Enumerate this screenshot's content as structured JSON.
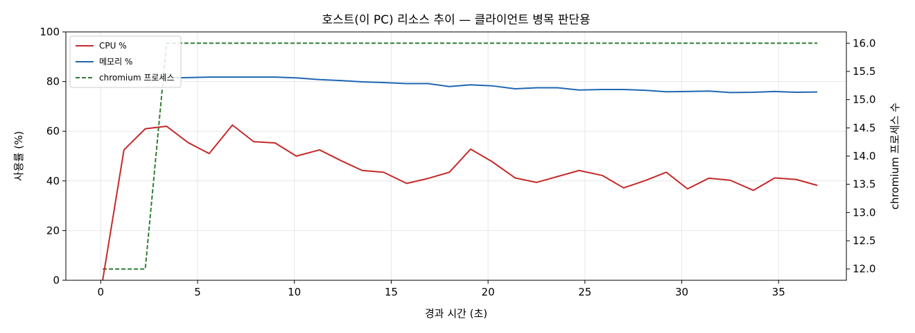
{
  "chart_data": {
    "type": "line",
    "title": "호스트(이 PC) 리소스 추이 — 클라이언트 병목 판단용",
    "xlabel": "경과 시간 (초)",
    "ylabel": "사용률 (%)",
    "y2label": "chromium 프로세스 수",
    "xlim": [
      -1.8,
      38.5
    ],
    "ylim": [
      0,
      100
    ],
    "y2lim": [
      11.8,
      16.2
    ],
    "xticks": [
      0,
      5,
      10,
      15,
      20,
      25,
      30,
      35
    ],
    "yticks": [
      0,
      20,
      40,
      60,
      80,
      100
    ],
    "y2ticks": [
      "12.0",
      "12.5",
      "13.0",
      "13.5",
      "14.0",
      "14.5",
      "15.0",
      "15.5",
      "16.0"
    ],
    "grid": true,
    "legend_position": "top-left",
    "series": [
      {
        "name": "CPU %",
        "axis": "left",
        "color": "#c62828",
        "style": "solid",
        "x": [
          0.1,
          1.2,
          2.3,
          3.4,
          4.5,
          5.6,
          6.8,
          7.9,
          9.0,
          10.1,
          11.3,
          12.4,
          13.5,
          14.6,
          15.8,
          16.9,
          18.0,
          19.1,
          20.2,
          21.4,
          22.5,
          23.6,
          24.7,
          25.9,
          27.0,
          28.1,
          29.2,
          30.3,
          31.4,
          32.5,
          33.7,
          34.8,
          35.9,
          37.0
        ],
        "values": [
          0,
          52.5,
          61,
          62,
          55.5,
          51,
          62.5,
          55.8,
          55.3,
          50,
          52.5,
          48.2,
          44.2,
          43.5,
          39,
          41,
          43.5,
          52.8,
          47.8,
          41.2,
          39.4,
          41.8,
          44.2,
          42.2,
          37.2,
          40.1,
          43.5,
          36.8,
          41.1,
          40.3,
          36.2,
          41.2,
          40.6,
          38.2
        ]
      },
      {
        "name": "메모리 %",
        "axis": "left",
        "color": "#1f66b3",
        "style": "solid",
        "x": [
          3.4,
          4.5,
          5.6,
          6.8,
          7.9,
          9.0,
          10.1,
          11.3,
          12.4,
          13.5,
          14.6,
          15.8,
          16.9,
          18.0,
          19.1,
          20.2,
          21.4,
          22.5,
          23.6,
          24.7,
          25.9,
          27.0,
          28.1,
          29.2,
          30.3,
          31.4,
          32.5,
          33.7,
          34.8,
          35.9,
          37.0
        ],
        "values": [
          81.5,
          81.6,
          81.8,
          81.8,
          81.8,
          81.8,
          81.5,
          80.8,
          80.4,
          79.9,
          79.6,
          79.2,
          79.2,
          78,
          78.7,
          78.3,
          77.1,
          77.5,
          77.5,
          76.6,
          76.8,
          76.8,
          76.5,
          75.9,
          76,
          76.2,
          75.6,
          75.7,
          76,
          75.7,
          75.8
        ]
      },
      {
        "name": "chromium 프로세스",
        "axis": "right",
        "color": "#2e7d32",
        "style": "dashed",
        "x": [
          0.1,
          1.2,
          2.3,
          3.4,
          4.5,
          5.6,
          6.8,
          7.9,
          9.0,
          10.1,
          11.3,
          12.4,
          13.5,
          14.6,
          15.8,
          16.9,
          18.0,
          19.1,
          20.2,
          21.4,
          22.5,
          23.6,
          24.7,
          25.9,
          27.0,
          28.1,
          29.2,
          30.3,
          31.4,
          32.5,
          33.7,
          34.8,
          35.9,
          37.0
        ],
        "values": [
          12,
          12,
          12,
          16,
          16,
          16,
          16,
          16,
          16,
          16,
          16,
          16,
          16,
          16,
          16,
          16,
          16,
          16,
          16,
          16,
          16,
          16,
          16,
          16,
          16,
          16,
          16,
          16,
          16,
          16,
          16,
          16,
          16,
          16
        ]
      }
    ]
  }
}
